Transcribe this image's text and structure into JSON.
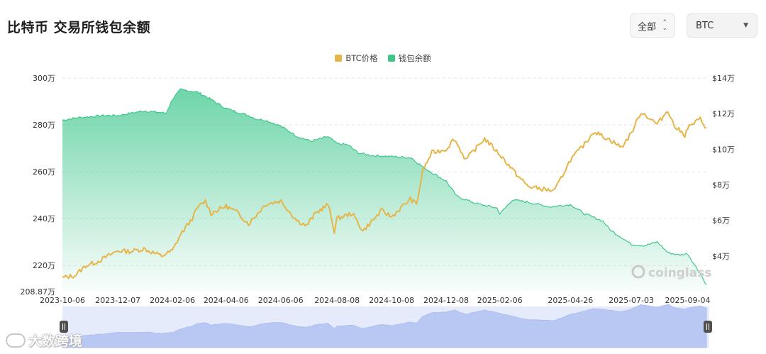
{
  "page": {
    "title": "比特币 交易所钱包余额",
    "range_select": "全部",
    "coin_select": "BTC",
    "watermark_chart": "coinglass",
    "watermark_corner": "大数跨境"
  },
  "colors": {
    "btc": "#e6b54a",
    "wallet": "#3ec78b",
    "navigator": "#b9c8f2"
  },
  "chart_data": {
    "type": "line",
    "title": "比特币 交易所钱包余额",
    "legend_position": "top-center",
    "grid": true,
    "x_ticks": [
      "2023-10-06",
      "2023-12-07",
      "2024-02-06",
      "2024-04-06",
      "2024-06-06",
      "2024-08-08",
      "2024-10-08",
      "2024-12-08",
      "2025-02-06",
      "2025-04-26",
      "2025-07-03",
      "2025-09-04"
    ],
    "left_axis": {
      "ticks": [
        "300万",
        "280万",
        "260万",
        "240万",
        "220万",
        "208.87万"
      ],
      "ylim": [
        2088700,
        3000000
      ]
    },
    "right_axis": {
      "ticks": [
        "$14万",
        "$12万",
        "$10万",
        "$8万",
        "$6万",
        "$4万"
      ],
      "ylim": [
        20000,
        140000
      ]
    },
    "series": [
      {
        "name": "BTC价格",
        "axis": "right",
        "x": [
          "2023-10-06",
          "2023-10-20",
          "2023-11-01",
          "2023-11-15",
          "2023-12-07",
          "2023-12-20",
          "2024-01-05",
          "2024-01-20",
          "2024-01-25",
          "2024-02-06",
          "2024-02-15",
          "2024-02-28",
          "2024-03-05",
          "2024-03-14",
          "2024-03-20",
          "2024-04-06",
          "2024-04-20",
          "2024-05-01",
          "2024-05-20",
          "2024-06-06",
          "2024-06-24",
          "2024-07-05",
          "2024-07-15",
          "2024-07-29",
          "2024-08-05",
          "2024-08-08",
          "2024-08-25",
          "2024-09-06",
          "2024-09-27",
          "2024-10-08",
          "2024-10-29",
          "2024-11-05",
          "2024-11-12",
          "2024-11-22",
          "2024-12-08",
          "2024-12-17",
          "2024-12-30",
          "2025-01-20",
          "2025-02-06",
          "2025-02-28",
          "2025-03-10",
          "2025-04-08",
          "2025-04-26",
          "2025-05-12",
          "2025-05-22",
          "2025-06-10",
          "2025-06-22",
          "2025-07-03",
          "2025-07-14",
          "2025-08-01",
          "2025-08-13",
          "2025-08-20",
          "2025-09-01",
          "2025-09-04",
          "2025-09-18",
          "2025-09-25"
        ],
        "values": [
          27800,
          29000,
          34500,
          37000,
          43000,
          42500,
          44000,
          41000,
          40000,
          43000,
          52000,
          61000,
          67000,
          71000,
          64000,
          68000,
          64000,
          58000,
          69000,
          71000,
          60000,
          57000,
          64000,
          69000,
          54000,
          61000,
          64000,
          54000,
          65500,
          62000,
          72000,
          69000,
          88000,
          98000,
          100000,
          106000,
          94000,
          106000,
          97000,
          84000,
          79000,
          76500,
          94000,
          103000,
          110000,
          105000,
          101000,
          109000,
          121000,
          114000,
          122000,
          113000,
          108000,
          112000,
          117000,
          112000
        ]
      },
      {
        "name": "钱包余额",
        "axis": "left",
        "x": [
          "2023-10-06",
          "2023-10-21",
          "2023-11-22",
          "2023-12-07",
          "2024-01-05",
          "2024-01-30",
          "2024-02-06",
          "2024-02-15",
          "2024-03-05",
          "2024-03-15",
          "2024-04-06",
          "2024-05-01",
          "2024-05-10",
          "2024-05-20",
          "2024-06-06",
          "2024-06-25",
          "2024-07-10",
          "2024-07-29",
          "2024-08-08",
          "2024-08-20",
          "2024-09-01",
          "2024-09-15",
          "2024-10-08",
          "2024-10-30",
          "2024-11-12",
          "2024-12-08",
          "2024-12-20",
          "2025-01-10",
          "2025-02-03",
          "2025-02-06",
          "2025-02-20",
          "2025-03-10",
          "2025-04-03",
          "2025-04-26",
          "2025-05-12",
          "2025-06-01",
          "2025-06-10",
          "2025-06-22",
          "2025-07-03",
          "2025-07-18",
          "2025-08-01",
          "2025-08-13",
          "2025-08-25",
          "2025-09-04",
          "2025-09-18",
          "2025-09-25"
        ],
        "values": [
          2820000,
          2830000,
          2840000,
          2840000,
          2860000,
          2850000,
          2910000,
          2950000,
          2940000,
          2920000,
          2870000,
          2840000,
          2825000,
          2820000,
          2795000,
          2750000,
          2730000,
          2750000,
          2720000,
          2715000,
          2680000,
          2670000,
          2665000,
          2660000,
          2620000,
          2560000,
          2495000,
          2465000,
          2445000,
          2420000,
          2480000,
          2470000,
          2450000,
          2460000,
          2420000,
          2390000,
          2350000,
          2320000,
          2290000,
          2285000,
          2300000,
          2255000,
          2245000,
          2250000,
          2165000,
          2118000
        ]
      }
    ]
  }
}
